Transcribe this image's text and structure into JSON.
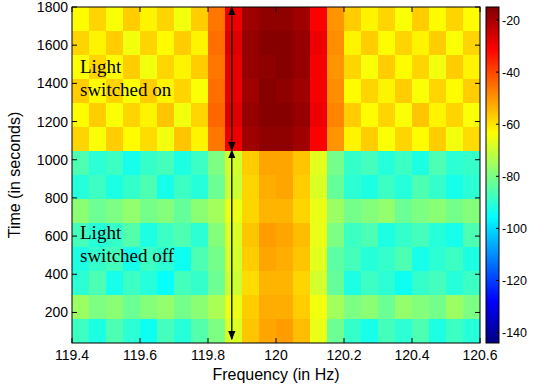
{
  "chart_data": {
    "type": "heatmap",
    "xlabel": "Frequency (in Hz)",
    "ylabel": "Time (in seconds)",
    "xlim": [
      119.4,
      120.6
    ],
    "ylim": [
      40,
      1800
    ],
    "xticks": [
      119.4,
      119.6,
      119.8,
      120,
      120.2,
      120.4,
      120.6
    ],
    "yticks": [
      200,
      400,
      600,
      800,
      1000,
      1200,
      1400,
      1600,
      1800
    ],
    "x_edges": [
      119.4,
      119.45,
      119.5,
      119.55,
      119.6,
      119.65,
      119.7,
      119.75,
      119.8,
      119.85,
      119.9,
      119.95,
      120,
      120.05,
      120.1,
      120.15,
      120.2,
      120.25,
      120.3,
      120.35,
      120.4,
      120.45,
      120.5,
      120.55,
      120.6
    ],
    "y_edges": [
      40,
      166,
      292,
      418,
      544,
      670,
      796,
      922,
      1050,
      1175,
      1300,
      1425,
      1550,
      1675,
      1800
    ],
    "cells": [
      [
        -88,
        -92,
        -86,
        -90,
        -94,
        -87,
        -91,
        -85,
        -80,
        -68,
        -56,
        -52,
        -51,
        -55,
        -66,
        -82,
        -89,
        -93,
        -87,
        -90,
        -86,
        -92,
        -88,
        -91
      ],
      [
        -76,
        -80,
        -78,
        -82,
        -79,
        -77,
        -81,
        -78,
        -74,
        -66,
        -57,
        -53,
        -53,
        -57,
        -65,
        -75,
        -80,
        -78,
        -82,
        -77,
        -79,
        -81,
        -76,
        -80
      ],
      [
        -90,
        -86,
        -93,
        -88,
        -91,
        -95,
        -87,
        -89,
        -82,
        -70,
        -59,
        -54,
        -54,
        -58,
        -69,
        -83,
        -92,
        -88,
        -90,
        -94,
        -89,
        -87,
        -91,
        -88
      ],
      [
        -92,
        -89,
        -87,
        -93,
        -88,
        -90,
        -94,
        -86,
        -81,
        -69,
        -57,
        -52,
        -53,
        -56,
        -67,
        -84,
        -87,
        -91,
        -89,
        -86,
        -93,
        -90,
        -88,
        -92
      ],
      [
        -87,
        -91,
        -89,
        -85,
        -92,
        -88,
        -86,
        -90,
        -79,
        -68,
        -56,
        -51,
        -52,
        -55,
        -66,
        -80,
        -88,
        -86,
        -92,
        -89,
        -87,
        -91,
        -93,
        -86
      ],
      [
        -78,
        -82,
        -80,
        -77,
        -81,
        -79,
        -83,
        -78,
        -75,
        -66,
        -58,
        -54,
        -54,
        -58,
        -66,
        -76,
        -81,
        -79,
        -77,
        -82,
        -80,
        -78,
        -81,
        -79
      ],
      [
        -91,
        -88,
        -92,
        -89,
        -86,
        -93,
        -88,
        -91,
        -82,
        -70,
        -58,
        -53,
        -52,
        -57,
        -68,
        -83,
        -90,
        -92,
        -88,
        -91,
        -86,
        -89,
        -93,
        -90
      ],
      [
        -86,
        -90,
        -88,
        -93,
        -89,
        -87,
        -92,
        -88,
        -80,
        -69,
        -57,
        -52,
        -52,
        -56,
        -67,
        -81,
        -89,
        -87,
        -91,
        -88,
        -92,
        -86,
        -90,
        -89
      ],
      [
        -58,
        -64,
        -57,
        -63,
        -59,
        -65,
        -56,
        -62,
        -46,
        -29,
        -19,
        -17,
        -17,
        -19,
        -31,
        -50,
        -62,
        -57,
        -64,
        -58,
        -63,
        -57,
        -65,
        -59
      ],
      [
        -63,
        -57,
        -64,
        -58,
        -62,
        -56,
        -65,
        -58,
        -44,
        -27,
        -18,
        -16,
        -16,
        -18,
        -29,
        -48,
        -57,
        -63,
        -58,
        -64,
        -56,
        -62,
        -58,
        -64
      ],
      [
        -57,
        -63,
        -58,
        -64,
        -57,
        -62,
        -58,
        -64,
        -45,
        -28,
        -19,
        -16,
        -17,
        -19,
        -30,
        -49,
        -63,
        -58,
        -62,
        -57,
        -64,
        -58,
        -63,
        -57
      ],
      [
        -64,
        -58,
        -63,
        -57,
        -65,
        -58,
        -62,
        -57,
        -46,
        -28,
        -18,
        -17,
        -16,
        -18,
        -30,
        -50,
        -58,
        -64,
        -57,
        -63,
        -58,
        -65,
        -57,
        -62
      ],
      [
        -58,
        -62,
        -57,
        -65,
        -58,
        -63,
        -57,
        -62,
        -45,
        -27,
        -18,
        -16,
        -16,
        -18,
        -29,
        -49,
        -62,
        -57,
        -63,
        -58,
        -62,
        -57,
        -64,
        -58
      ],
      [
        -63,
        -58,
        -64,
        -57,
        -62,
        -58,
        -65,
        -57,
        -46,
        -29,
        -19,
        -17,
        -17,
        -19,
        -31,
        -50,
        -57,
        -62,
        -58,
        -64,
        -57,
        -63,
        -58,
        -63
      ]
    ],
    "colorbar": {
      "lim": [
        -144,
        -15
      ],
      "ticks": [
        -140,
        -120,
        -100,
        -80,
        -60,
        -40,
        -20
      ]
    },
    "annotations": [
      {
        "text": "Light switched on",
        "x": 119.87,
        "y_from": 1050,
        "y_to": 1800
      },
      {
        "text": "Light switched off",
        "x": 119.87,
        "y_from": 60,
        "y_to": 1050
      }
    ]
  }
}
